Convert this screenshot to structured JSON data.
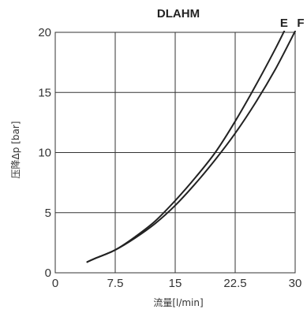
{
  "chart_data": {
    "type": "line",
    "title": "DLAHM",
    "xlabel": "流量[l/min]",
    "ylabel": "压降Δp [bar]",
    "xlim": [
      0,
      30
    ],
    "ylim": [
      0,
      20
    ],
    "xticks": [
      0,
      7.5,
      15,
      22.5,
      30
    ],
    "xtick_labels": [
      "0",
      "7.5",
      "15",
      "22.5",
      "30"
    ],
    "yticks": [
      0,
      5,
      10,
      15,
      20
    ],
    "ytick_labels": [
      "0",
      "5",
      "10",
      "15",
      "20"
    ],
    "grid": true,
    "series": [
      {
        "name": "E",
        "x": [
          4,
          5,
          7.5,
          10,
          12.5,
          15,
          17.5,
          20,
          22.5,
          25,
          27.5,
          29
        ],
        "y": [
          0.9,
          1.2,
          1.9,
          3.0,
          4.3,
          6.0,
          7.9,
          10.0,
          12.6,
          15.5,
          18.6,
          20.6
        ]
      },
      {
        "name": "F",
        "x": [
          4,
          5,
          7.5,
          10,
          12.5,
          15,
          17.5,
          20,
          22.5,
          25,
          27.5,
          30
        ],
        "y": [
          0.9,
          1.2,
          1.9,
          2.9,
          4.1,
          5.6,
          7.4,
          9.4,
          11.6,
          14.1,
          16.9,
          20.1
        ]
      }
    ]
  }
}
